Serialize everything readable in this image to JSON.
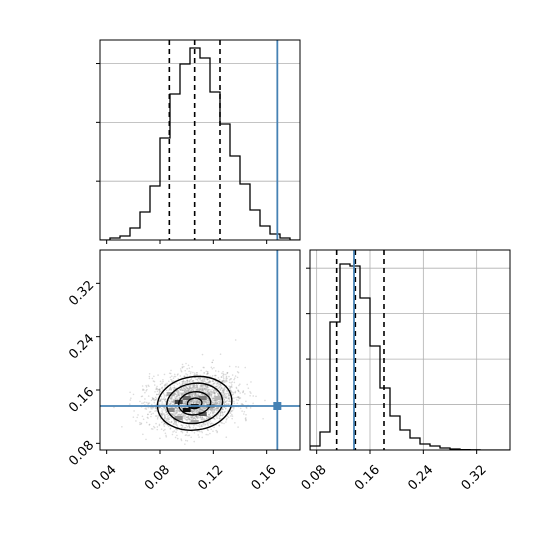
{
  "chart_data": {
    "type": "corner",
    "parameters": [
      "",
      ""
    ],
    "colors": {
      "truth": "#4682b4",
      "hist": "#000000",
      "quantile": "#000000",
      "grid": "#b0b0b0",
      "points": "#9a9a9a"
    },
    "truth_values": [
      0.168,
      0.136
    ],
    "grid": true,
    "panels": [
      {
        "id": "hist_x",
        "type": "histogram",
        "parameter_index": 0,
        "xlim": [
          0.035,
          0.185
        ],
        "ylim": [
          0,
          1.0
        ],
        "ytick_count": 3,
        "bins": [
          0.035,
          0.0425,
          0.05,
          0.0575,
          0.065,
          0.0725,
          0.08,
          0.0875,
          0.095,
          0.1025,
          0.11,
          0.1175,
          0.125,
          0.1325,
          0.14,
          0.1475,
          0.155,
          0.1625,
          0.17,
          0.1775,
          0.185
        ],
        "counts": [
          0,
          0.01,
          0.02,
          0.06,
          0.14,
          0.27,
          0.51,
          0.73,
          0.88,
          0.96,
          0.91,
          0.74,
          0.58,
          0.42,
          0.28,
          0.15,
          0.07,
          0.03,
          0.01,
          0.0
        ],
        "quantiles": [
          0.087,
          0.106,
          0.125
        ],
        "truth": 0.168
      },
      {
        "id": "hist_y",
        "type": "histogram",
        "parameter_index": 1,
        "xlim": [
          0.07,
          0.37
        ],
        "xticks": [
          "0.08",
          "0.16",
          "0.24",
          "0.32"
        ],
        "xtick_values": [
          0.08,
          0.16,
          0.24,
          0.32
        ],
        "ylim": [
          0,
          1.0
        ],
        "ytick_count": 4,
        "bins": [
          0.07,
          0.085,
          0.1,
          0.115,
          0.13,
          0.145,
          0.16,
          0.175,
          0.19,
          0.205,
          0.22,
          0.235,
          0.25,
          0.265,
          0.28,
          0.295,
          0.31,
          0.325,
          0.34,
          0.355,
          0.37
        ],
        "counts": [
          0.02,
          0.09,
          0.64,
          0.93,
          0.92,
          0.76,
          0.52,
          0.31,
          0.17,
          0.1,
          0.06,
          0.03,
          0.02,
          0.01,
          0.005,
          0.002,
          0.001,
          0,
          0,
          0
        ],
        "quantiles": [
          0.11,
          0.138,
          0.181
        ],
        "truth": 0.136
      },
      {
        "id": "joint_xy",
        "type": "contour",
        "xlim": [
          0.035,
          0.185
        ],
        "ylim": [
          0.07,
          0.37
        ],
        "xticks": [
          "0.04",
          "0.08",
          "0.12",
          "0.16"
        ],
        "xtick_values": [
          0.04,
          0.08,
          0.12,
          0.16
        ],
        "yticks": [
          "0.08",
          "0.16",
          "0.24",
          "0.32"
        ],
        "ytick_values": [
          0.08,
          0.16,
          0.24,
          0.32
        ],
        "center": [
          0.106,
          0.14
        ],
        "spread": [
          0.014,
          0.02
        ],
        "contour_levels": [
          0.39,
          0.86,
          1.5,
          2.0
        ],
        "density_cells": [
          {
            "x": 0.1,
            "y": 0.13,
            "v": 1.0
          },
          {
            "x": 0.106,
            "y": 0.136,
            "v": 0.92
          },
          {
            "x": 0.094,
            "y": 0.142,
            "v": 0.78
          },
          {
            "x": 0.112,
            "y": 0.124,
            "v": 0.7
          },
          {
            "x": 0.1,
            "y": 0.148,
            "v": 0.62
          },
          {
            "x": 0.112,
            "y": 0.148,
            "v": 0.55
          },
          {
            "x": 0.088,
            "y": 0.13,
            "v": 0.5
          },
          {
            "x": 0.118,
            "y": 0.136,
            "v": 0.48
          },
          {
            "x": 0.094,
            "y": 0.118,
            "v": 0.45
          },
          {
            "x": 0.106,
            "y": 0.112,
            "v": 0.36
          },
          {
            "x": 0.088,
            "y": 0.154,
            "v": 0.32
          },
          {
            "x": 0.124,
            "y": 0.148,
            "v": 0.3
          }
        ]
      }
    ]
  }
}
